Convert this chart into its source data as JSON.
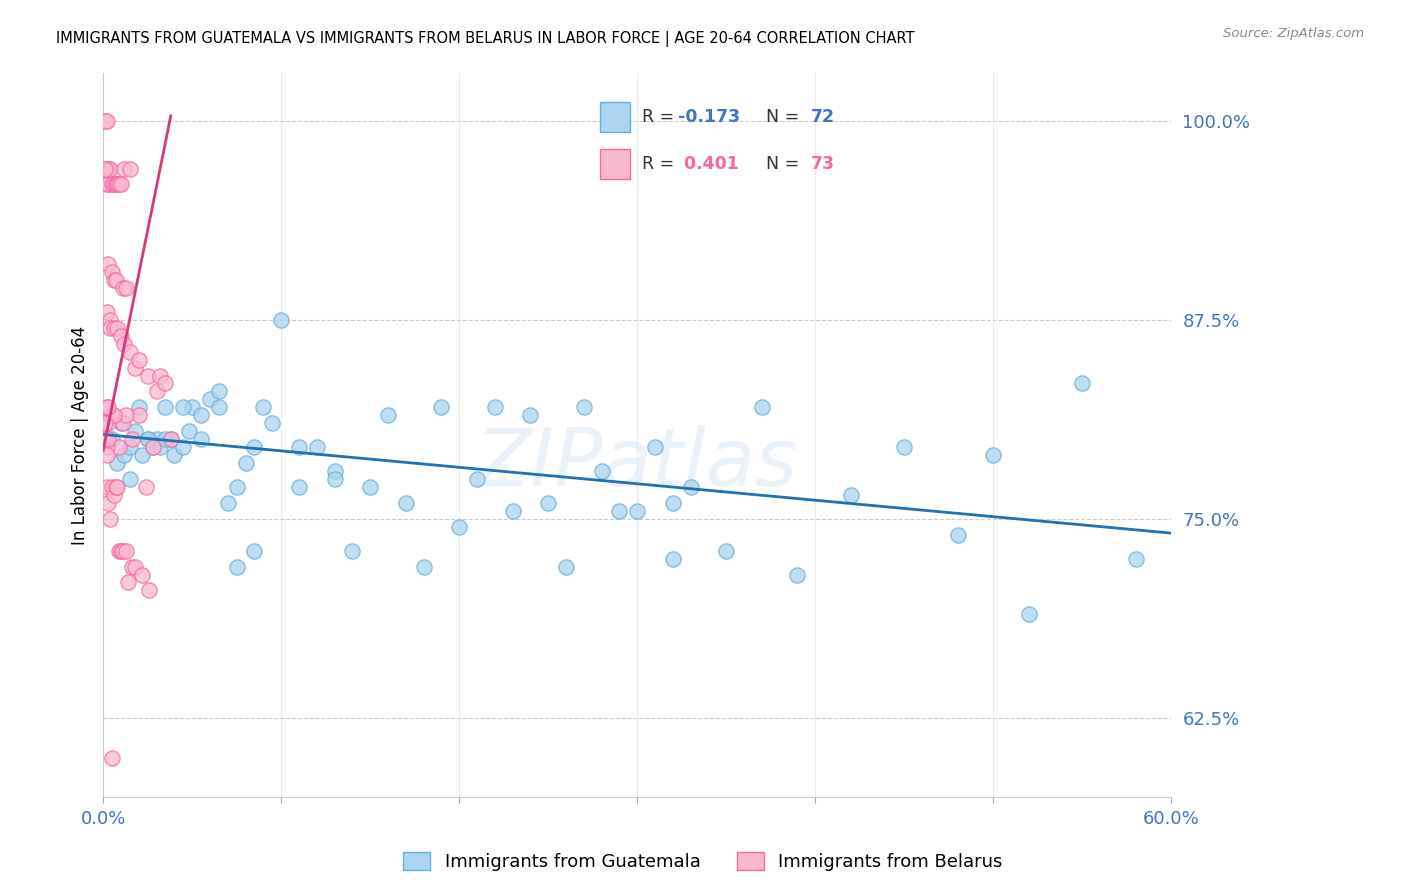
{
  "title": "IMMIGRANTS FROM GUATEMALA VS IMMIGRANTS FROM BELARUS IN LABOR FORCE | AGE 20-64 CORRELATION CHART",
  "source": "Source: ZipAtlas.com",
  "ylabel": "In Labor Force | Age 20-64",
  "ytick_values": [
    0.625,
    0.75,
    0.875,
    1.0
  ],
  "ytick_labels": [
    "62.5%",
    "75.0%",
    "87.5%",
    "100.0%"
  ],
  "xlim": [
    0.0,
    0.6
  ],
  "ylim": [
    0.575,
    1.03
  ],
  "axis_color": "#4472c4",
  "watermark": "ZIPatlas",
  "title_fontsize": 10.5,
  "guatemala_scatter_x": [
    0.005,
    0.008,
    0.01,
    0.012,
    0.015,
    0.018,
    0.02,
    0.022,
    0.025,
    0.028,
    0.03,
    0.032,
    0.035,
    0.038,
    0.04,
    0.045,
    0.048,
    0.05,
    0.055,
    0.06,
    0.065,
    0.07,
    0.075,
    0.08,
    0.085,
    0.09,
    0.1,
    0.11,
    0.12,
    0.13,
    0.14,
    0.15,
    0.16,
    0.17,
    0.18,
    0.19,
    0.2,
    0.21,
    0.22,
    0.23,
    0.24,
    0.25,
    0.26,
    0.27,
    0.28,
    0.29,
    0.3,
    0.31,
    0.32,
    0.33,
    0.35,
    0.37,
    0.39,
    0.42,
    0.45,
    0.48,
    0.5,
    0.52,
    0.55,
    0.58,
    0.015,
    0.025,
    0.035,
    0.045,
    0.055,
    0.065,
    0.075,
    0.085,
    0.095,
    0.11,
    0.13,
    0.32
  ],
  "guatemala_scatter_y": [
    0.8,
    0.785,
    0.81,
    0.79,
    0.795,
    0.805,
    0.82,
    0.79,
    0.8,
    0.795,
    0.8,
    0.795,
    0.82,
    0.8,
    0.79,
    0.795,
    0.805,
    0.82,
    0.815,
    0.825,
    0.83,
    0.76,
    0.77,
    0.785,
    0.795,
    0.82,
    0.875,
    0.77,
    0.795,
    0.78,
    0.73,
    0.77,
    0.815,
    0.76,
    0.72,
    0.82,
    0.745,
    0.775,
    0.82,
    0.755,
    0.815,
    0.76,
    0.72,
    0.82,
    0.78,
    0.755,
    0.755,
    0.795,
    0.76,
    0.77,
    0.73,
    0.82,
    0.715,
    0.765,
    0.795,
    0.74,
    0.79,
    0.69,
    0.835,
    0.725,
    0.775,
    0.8,
    0.8,
    0.82,
    0.8,
    0.82,
    0.72,
    0.73,
    0.81,
    0.795,
    0.775,
    0.725
  ],
  "belarus_scatter_x": [
    0.001,
    0.002,
    0.002,
    0.002,
    0.002,
    0.003,
    0.003,
    0.003,
    0.004,
    0.004,
    0.004,
    0.005,
    0.005,
    0.006,
    0.006,
    0.006,
    0.007,
    0.007,
    0.008,
    0.008,
    0.008,
    0.009,
    0.009,
    0.01,
    0.01,
    0.01,
    0.011,
    0.011,
    0.012,
    0.012,
    0.013,
    0.013,
    0.014,
    0.015,
    0.015,
    0.016,
    0.016,
    0.018,
    0.018,
    0.02,
    0.02,
    0.022,
    0.024,
    0.025,
    0.026,
    0.028,
    0.03,
    0.032,
    0.035,
    0.038,
    0.002,
    0.003,
    0.004,
    0.005,
    0.006,
    0.007,
    0.008,
    0.009,
    0.011,
    0.013,
    0.001,
    0.002,
    0.003,
    0.004,
    0.005,
    0.006,
    0.001,
    0.002,
    0.003,
    0.002,
    0.003,
    0.001,
    0.005
  ],
  "belarus_scatter_y": [
    1.0,
    1.0,
    0.97,
    0.96,
    0.88,
    0.97,
    0.91,
    0.96,
    0.97,
    0.875,
    0.87,
    0.96,
    0.905,
    0.96,
    0.87,
    0.9,
    0.96,
    0.9,
    0.96,
    0.87,
    0.96,
    0.96,
    0.73,
    0.96,
    0.865,
    0.73,
    0.895,
    0.73,
    0.97,
    0.86,
    0.895,
    0.73,
    0.71,
    0.97,
    0.855,
    0.72,
    0.8,
    0.845,
    0.72,
    0.85,
    0.815,
    0.715,
    0.77,
    0.84,
    0.705,
    0.795,
    0.83,
    0.84,
    0.835,
    0.8,
    0.77,
    0.76,
    0.75,
    0.77,
    0.765,
    0.77,
    0.77,
    0.795,
    0.81,
    0.815,
    0.97,
    0.795,
    0.81,
    0.815,
    0.815,
    0.815,
    0.8,
    0.79,
    0.8,
    0.82,
    0.82,
    0.81,
    0.6
  ],
  "guat_line_x": [
    0.0,
    0.6
  ],
  "guat_line_y": [
    0.803,
    0.741
  ],
  "bela_line_x": [
    0.0,
    0.038
  ],
  "bela_line_y": [
    0.793,
    1.003
  ],
  "scatter_size": 120,
  "guat_face": "#aad4f0",
  "guat_edge": "#6baed6",
  "bela_face": "#f9b8d0",
  "bela_edge": "#f768a1",
  "guat_line_color": "#2171b5",
  "bela_line_color": "#d63880",
  "line_width": 2.0,
  "legend_r1_text": "R = -0.173",
  "legend_n1_text": "N = 72",
  "legend_r2_text": "R =  0.401",
  "legend_n2_text": "N = 73",
  "legend_color1": "#4472c4",
  "legend_color2": "#f768a1"
}
